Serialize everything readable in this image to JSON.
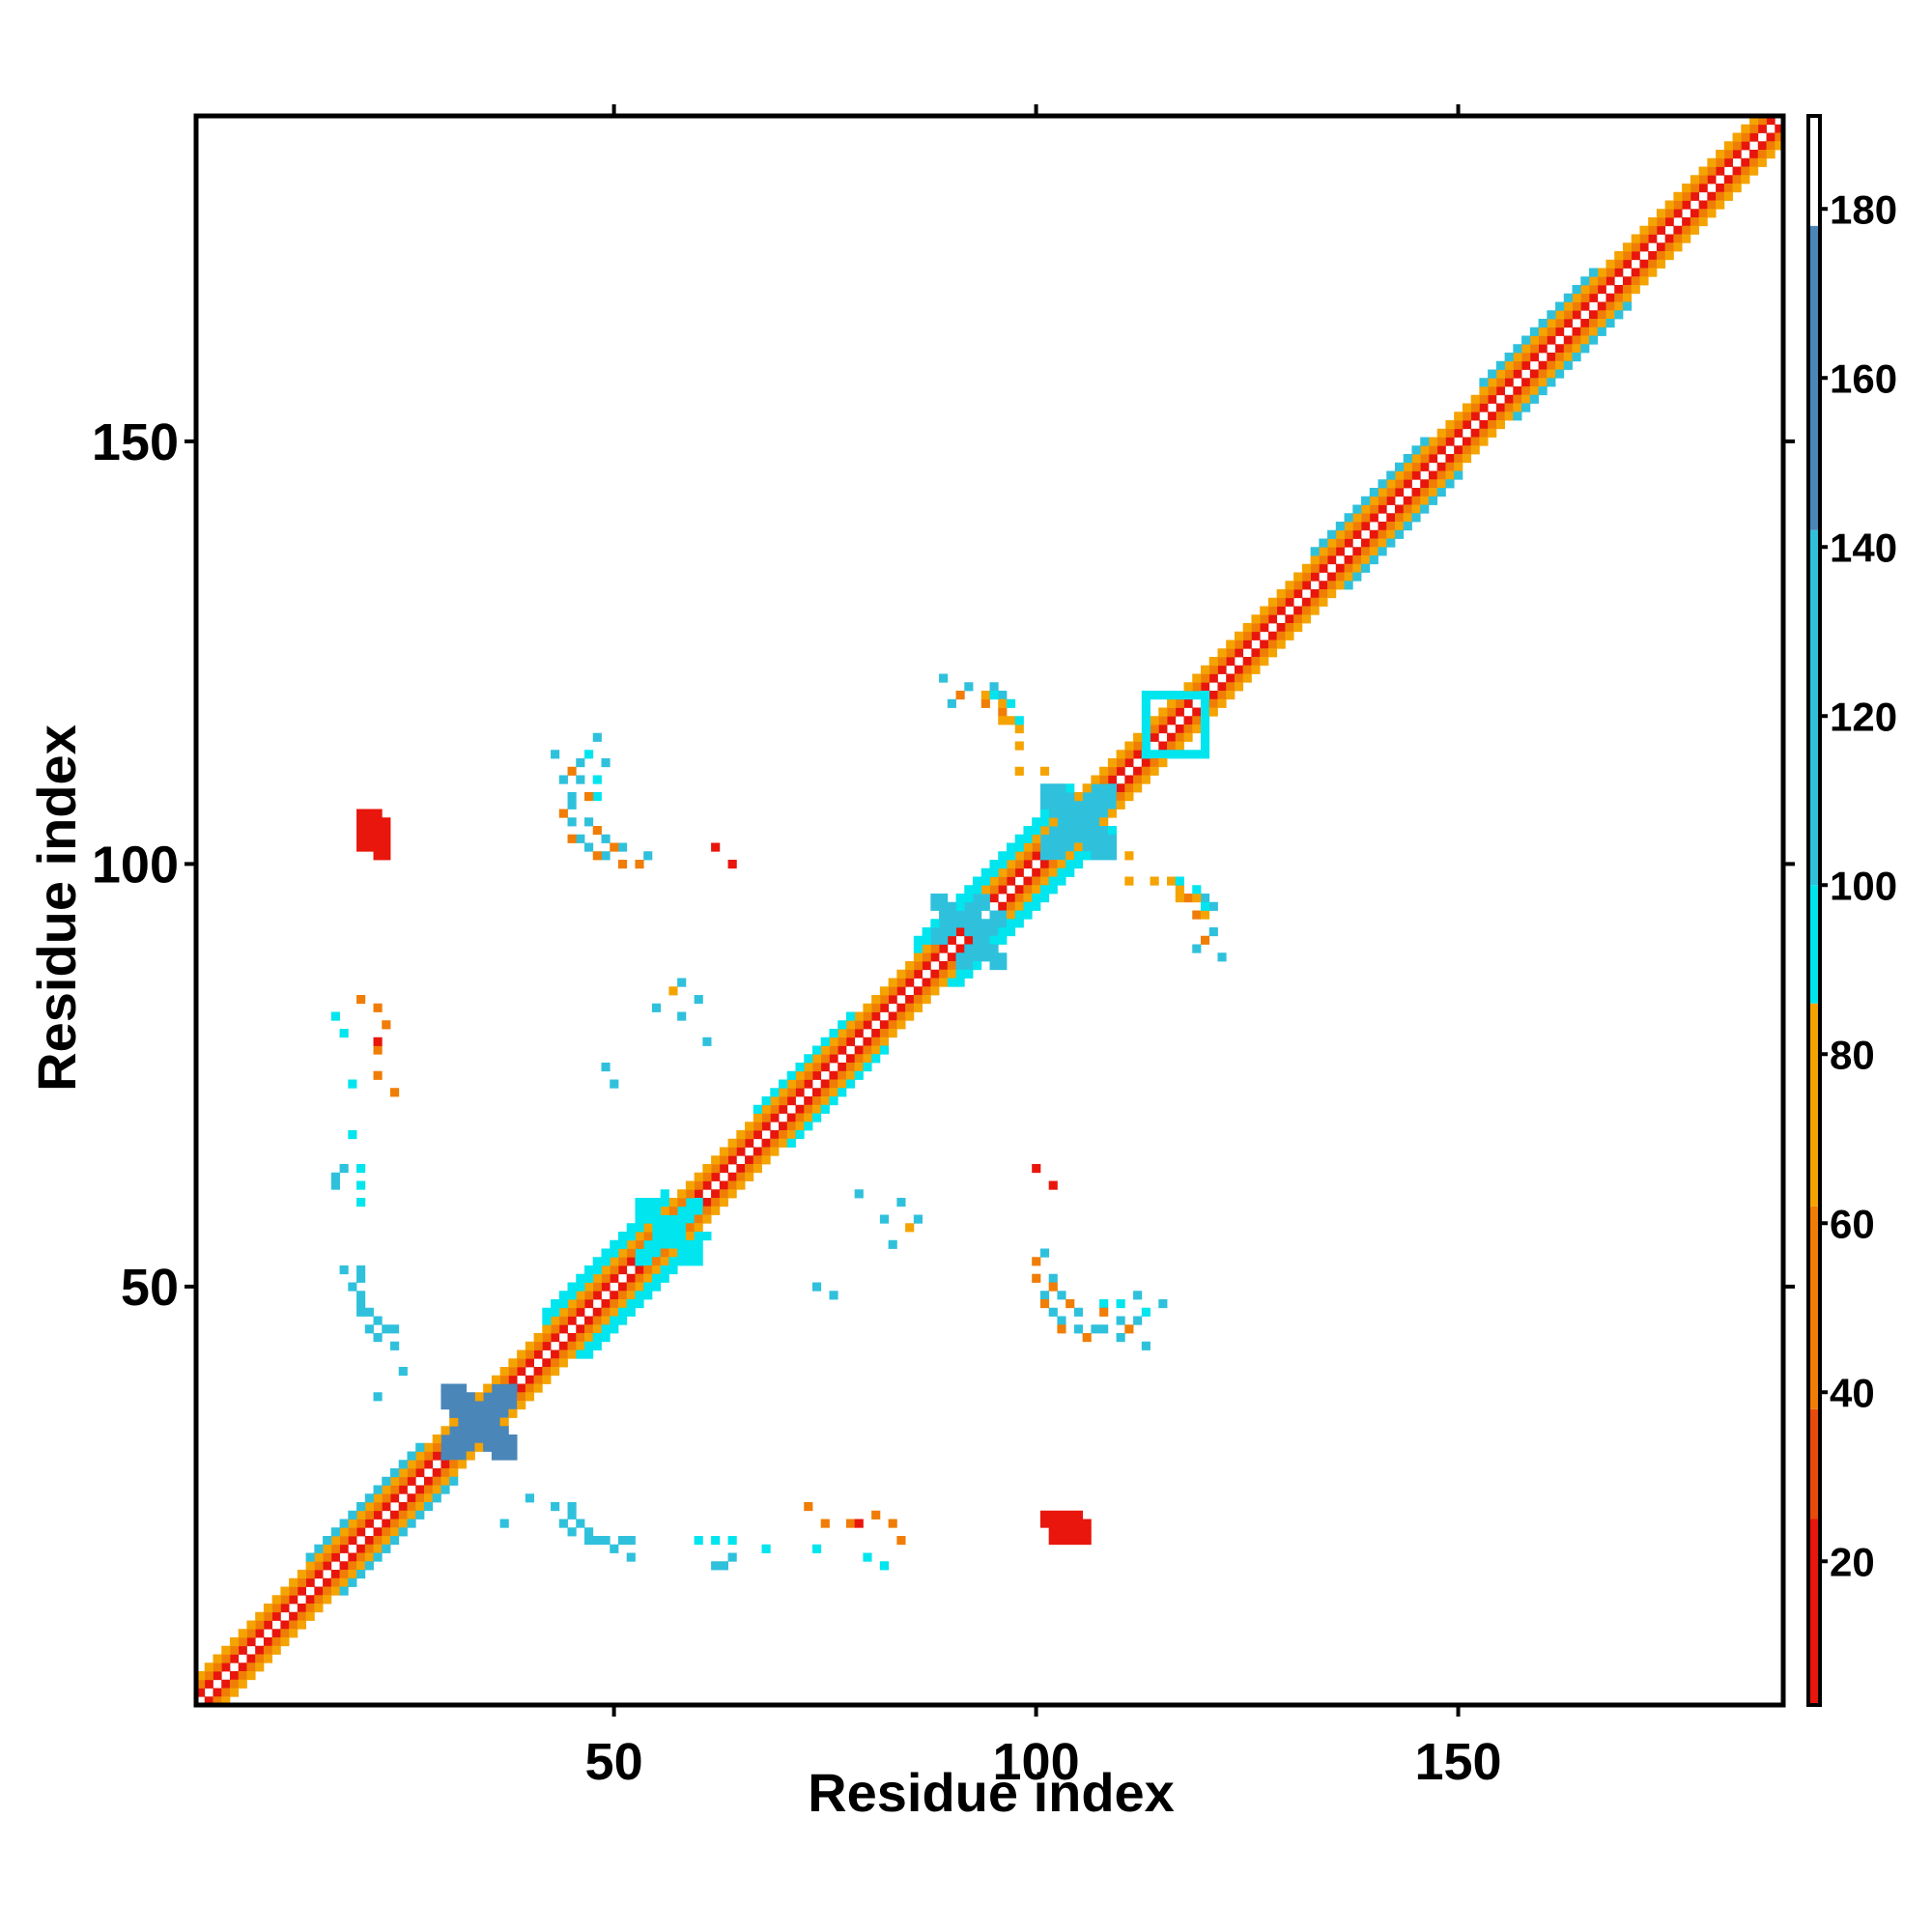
{
  "chart_data": {
    "type": "heatmap",
    "title": "",
    "xlabel": "Residue index",
    "ylabel": "Residue index",
    "xlim": [
      1,
      188
    ],
    "ylim": [
      1,
      188
    ],
    "x_ticks": [
      {
        "value": 50,
        "label": "50"
      },
      {
        "value": 100,
        "label": "100"
      },
      {
        "value": 150,
        "label": "150"
      }
    ],
    "y_ticks": [
      {
        "value": 50,
        "label": "50"
      },
      {
        "value": 100,
        "label": "100"
      },
      {
        "value": 150,
        "label": "150"
      }
    ],
    "colorbar": {
      "range": [
        3,
        191
      ],
      "ticks": [
        {
          "value": 20,
          "label": "20"
        },
        {
          "value": 40,
          "label": "40"
        },
        {
          "value": 60,
          "label": "60"
        },
        {
          "value": 80,
          "label": "80"
        },
        {
          "value": 100,
          "label": "100"
        },
        {
          "value": 120,
          "label": "120"
        },
        {
          "value": 140,
          "label": "140"
        },
        {
          "value": 160,
          "label": "160"
        },
        {
          "value": 180,
          "label": "180"
        }
      ],
      "bands": [
        {
          "from": 3,
          "to": 25,
          "color": "#e8160c"
        },
        {
          "from": 25,
          "to": 38,
          "color": "#e84a0c"
        },
        {
          "from": 38,
          "to": 62,
          "color": "#f07d06"
        },
        {
          "from": 62,
          "to": 86,
          "color": "#f5a300"
        },
        {
          "from": 86,
          "to": 100,
          "color": "#00e5ee"
        },
        {
          "from": 100,
          "to": 142,
          "color": "#2fc1dc"
        },
        {
          "from": 142,
          "to": 178,
          "color": "#4a86b8"
        },
        {
          "from": 178,
          "to": 191,
          "color": "#ffffff"
        }
      ]
    },
    "colors": {
      "red": "#e8160c",
      "orange": "#f07d06",
      "amber": "#f5a300",
      "cyan": "#00e5ee",
      "sky": "#2fc1dc",
      "steel": "#4a86b8"
    },
    "cells": {
      "diagonal_bands": [
        {
          "from": 1,
          "to": 188,
          "offset": 1,
          "color": "red"
        },
        {
          "from": 1,
          "to": 188,
          "offset": 2,
          "color": "orange"
        },
        {
          "from": 1,
          "to": 188,
          "offset": 3,
          "color": "amber"
        },
        {
          "from": 14,
          "to": 27,
          "offset": 4,
          "color": "sky"
        },
        {
          "from": 42,
          "to": 56,
          "offset": 4,
          "color": "cyan"
        },
        {
          "from": 42,
          "to": 56,
          "offset": 5,
          "color": "cyan"
        },
        {
          "from": 86,
          "to": 104,
          "offset": 4,
          "color": "cyan"
        },
        {
          "from": 86,
          "to": 104,
          "offset": 5,
          "color": "cyan"
        },
        {
          "from": 67,
          "to": 78,
          "offset": 4,
          "color": "cyan"
        },
        {
          "from": 133,
          "to": 146,
          "offset": 4,
          "color": "sky"
        },
        {
          "from": 153,
          "to": 166,
          "offset": 4,
          "color": "sky"
        }
      ],
      "blocks": [
        {
          "x": [
            30,
            38
          ],
          "y": [
            30,
            38
          ],
          "color": "steel",
          "pattern": "x"
        },
        {
          "x": [
            53,
            60
          ],
          "y": [
            53,
            60
          ],
          "color": "cyan",
          "pattern": "x"
        },
        {
          "x": [
            101,
            109
          ],
          "y": [
            101,
            109
          ],
          "color": "sky",
          "pattern": "x"
        },
        {
          "x": [
            113,
            120
          ],
          "y": [
            113,
            120
          ],
          "color": "cyan",
          "pattern": "ring"
        },
        {
          "x": [
            91,
            96
          ],
          "y": [
            88,
            94
          ],
          "color": "sky",
          "pattern": "x"
        },
        {
          "x": [
            20,
            22
          ],
          "y": [
            102,
            106
          ],
          "color": "red",
          "pattern": "fill"
        },
        {
          "x": [
            101,
            105
          ],
          "y": [
            22,
            23
          ],
          "color": "red",
          "pattern": "fill"
        }
      ],
      "arcs": [
        {
          "points": [
            [
              18,
              52
            ],
            [
              19,
              50
            ],
            [
              20,
              48
            ],
            [
              21,
              47
            ],
            [
              22,
              46
            ],
            [
              23,
              45
            ],
            [
              24,
              45
            ]
          ],
          "color": "sky"
        },
        {
          "points": [
            [
              17,
              62
            ],
            [
              17,
              63
            ],
            [
              18,
              64
            ]
          ],
          "color": "sky"
        },
        {
          "points": [
            [
              43,
              24
            ],
            [
              44,
              22
            ],
            [
              45,
              21
            ],
            [
              47,
              20
            ],
            [
              49,
              20
            ],
            [
              51,
              20
            ],
            [
              52,
              20
            ]
          ],
          "color": "sky"
        },
        {
          "points": [
            [
              60,
              20
            ],
            [
              62,
              20
            ],
            [
              64,
              20
            ],
            [
              68,
              19
            ],
            [
              74,
              19
            ]
          ],
          "color": "cyan"
        },
        {
          "points": [
            [
              73,
              24
            ],
            [
              75,
              22
            ],
            [
              78,
              22
            ]
          ],
          "color": "orange"
        },
        {
          "points": [
            [
              84,
              60
            ],
            [
              86,
              58
            ]
          ],
          "color": "sky"
        },
        {
          "points": [
            [
              102,
              51
            ],
            [
              101,
              49
            ],
            [
              102,
              47
            ],
            [
              103,
              46
            ],
            [
              105,
              45
            ],
            [
              107,
              45
            ],
            [
              110,
              46
            ],
            [
              112,
              46
            ]
          ],
          "color": "sky"
        },
        {
          "points": [
            [
              100,
              51
            ],
            [
              101,
              48
            ],
            [
              103,
              45
            ],
            [
              106,
              44
            ],
            [
              110,
              44
            ]
          ],
          "color": "orange"
        },
        {
          "points": [
            [
              108,
              48
            ],
            [
              110,
              48
            ],
            [
              113,
              47
            ]
          ],
          "color": "cyan"
        },
        {
          "points": [
            [
              43,
              113
            ],
            [
              44,
              110
            ],
            [
              45,
              108
            ],
            [
              47,
              105
            ],
            [
              49,
              103
            ],
            [
              51,
              102
            ],
            [
              54,
              101
            ]
          ],
          "color": "sky"
        },
        {
          "points": [
            [
              45,
              111
            ],
            [
              47,
              108
            ],
            [
              48,
              104
            ],
            [
              50,
              102
            ],
            [
              53,
              100
            ]
          ],
          "color": "orange"
        },
        {
          "points": [
            [
              48,
              115
            ],
            [
              49,
              112
            ]
          ],
          "color": "sky"
        },
        {
          "points": [
            [
              89,
              122
            ],
            [
              92,
              121
            ],
            [
              95,
              121
            ],
            [
              96,
              120
            ]
          ],
          "color": "sky"
        },
        {
          "points": [
            [
              91,
              120
            ],
            [
              94,
              119
            ],
            [
              96,
              118
            ]
          ],
          "color": "orange"
        },
        {
          "points": [
            [
              96,
              117
            ],
            [
              98,
              116
            ]
          ],
          "color": "amber"
        },
        {
          "points": [
            [
              111,
              98
            ],
            [
              114,
              98
            ],
            [
              117,
              97
            ],
            [
              119,
              96
            ],
            [
              120,
              94
            ]
          ],
          "color": "amber"
        },
        {
          "points": [
            [
              117,
              98
            ],
            [
              119,
              97
            ],
            [
              120,
              95
            ]
          ],
          "color": "cyan"
        },
        {
          "points": [
            [
              20,
              84
            ],
            [
              22,
              83
            ],
            [
              23,
              81
            ]
          ],
          "color": "orange"
        },
        {
          "points": [
            [
              17,
              82
            ],
            [
              18,
              80
            ]
          ],
          "color": "cyan"
        },
        {
          "points": [
            [
              55,
              83
            ],
            [
              58,
              82
            ],
            [
              61,
              79
            ]
          ],
          "color": "sky"
        },
        {
          "points": [
            [
              49,
              76
            ],
            [
              50,
              74
            ]
          ],
          "color": "sky"
        }
      ],
      "singles": [
        {
          "x": 64,
          "y": 100,
          "color": "red"
        },
        {
          "x": 102,
          "y": 62,
          "color": "red"
        },
        {
          "x": 22,
          "y": 79,
          "color": "red"
        },
        {
          "x": 37,
          "y": 22,
          "color": "sky"
        },
        {
          "x": 25,
          "y": 40,
          "color": "sky"
        },
        {
          "x": 57,
          "y": 85,
          "color": "amber"
        },
        {
          "x": 119,
          "y": 90,
          "color": "sky"
        },
        {
          "x": 111,
          "y": 101,
          "color": "amber"
        }
      ]
    }
  }
}
